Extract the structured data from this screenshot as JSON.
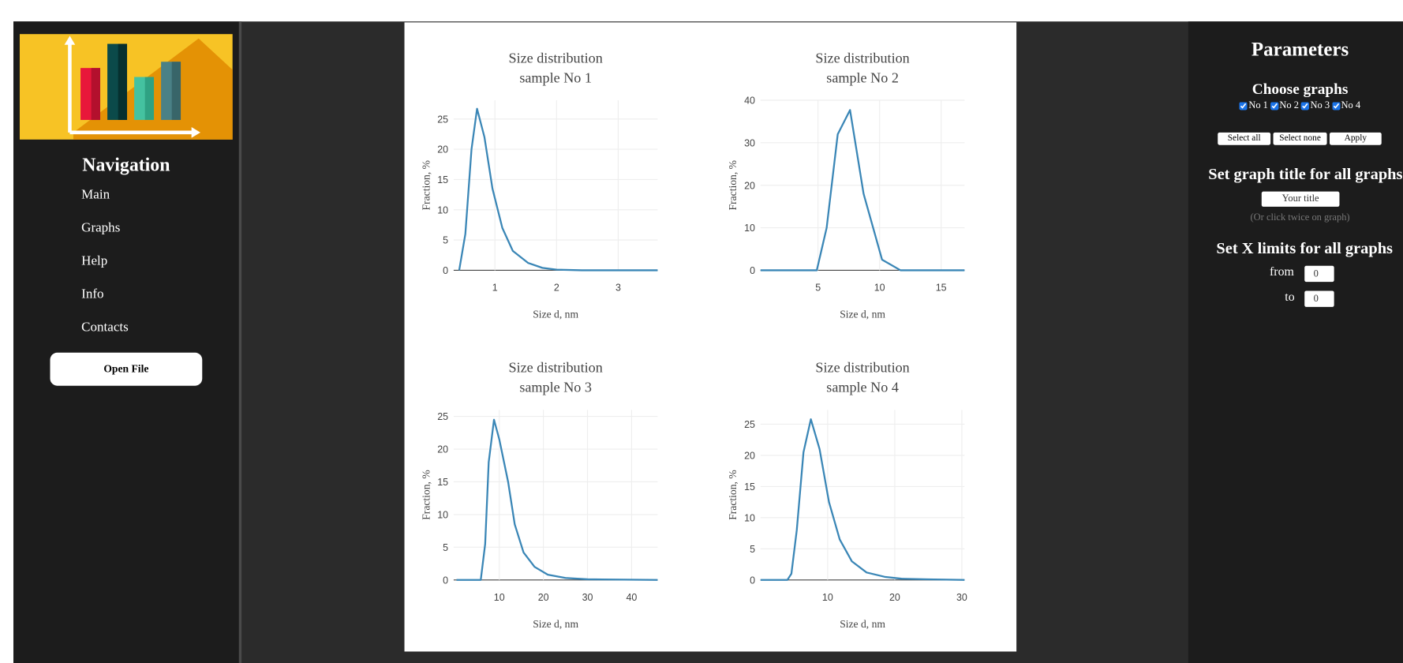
{
  "nav": {
    "title": "Navigation",
    "items": [
      "Main",
      "Graphs",
      "Help",
      "Info",
      "Contacts"
    ],
    "button": "Open File"
  },
  "params": {
    "title": "Parameters",
    "choose": "Choose graphs",
    "checkboxes": [
      "No 1",
      "No 2",
      "No 3",
      "No 4"
    ],
    "buttons": [
      "Select all",
      "Select none",
      "Apply"
    ],
    "title_heading": "Set graph title for all graphs",
    "title_input": "Your title",
    "title_hint": "(Or click twice on graph)",
    "xlim_heading": "Set X limits for all graphs",
    "from_label": "from",
    "from_value": "0",
    "to_label": "to",
    "to_value": "0"
  },
  "chart_data": [
    {
      "type": "line",
      "title": "Size distribution",
      "subtitle": "sample No 1",
      "x_label": "Size d, nm",
      "y_label": "Fraction, %",
      "x": [
        0.42,
        0.52,
        0.62,
        0.71,
        0.83,
        0.96,
        1.12,
        1.29,
        1.54,
        1.77,
        2.0,
        2.41,
        3.64
      ],
      "series": [
        {
          "color": "#3a86b6",
          "values": [
            0,
            6,
            20,
            26.7,
            22,
            13.5,
            7,
            3.2,
            1.2,
            0.4,
            0.1,
            0,
            0
          ]
        }
      ],
      "xlim": [
        0.33,
        3.64
      ],
      "ylim": [
        0,
        28.1
      ],
      "xticks": [
        1,
        2,
        3
      ],
      "yticks": [
        0,
        5,
        10,
        15,
        20,
        25
      ],
      "grid": true
    },
    {
      "type": "line",
      "title": "Size distribution",
      "subtitle": "sample No 2",
      "x_label": "Size d, nm",
      "y_label": "Fraction, %",
      "x": [
        0.33,
        4.9,
        5.7,
        6.6,
        7.6,
        8.7,
        10.2,
        11.7,
        16.9
      ],
      "series": [
        {
          "color": "#3a86b6",
          "values": [
            0,
            0,
            10,
            32,
            37.7,
            18,
            2.5,
            0,
            0
          ]
        }
      ],
      "xlim": [
        0.33,
        16.9
      ],
      "ylim": [
        0,
        40
      ],
      "xticks": [
        5,
        10,
        15
      ],
      "yticks": [
        0,
        10,
        20,
        30,
        40
      ],
      "grid": true
    },
    {
      "type": "line",
      "title": "Size distribution",
      "subtitle": "sample No 3",
      "x_label": "Size d, nm",
      "y_label": "Fraction, %",
      "x": [
        0.3,
        5.8,
        6.8,
        7.6,
        8.8,
        10,
        12,
        13.5,
        15.5,
        18,
        21,
        25,
        30,
        45.9
      ],
      "series": [
        {
          "color": "#3a86b6",
          "values": [
            0,
            0,
            5.5,
            18,
            24.5,
            21.5,
            15,
            8.5,
            4.2,
            2,
            0.8,
            0.3,
            0.1,
            0
          ]
        }
      ],
      "xlim": [
        -0.35,
        45.9
      ],
      "ylim": [
        0,
        26
      ],
      "xticks": [
        10,
        20,
        30,
        40
      ],
      "yticks": [
        0,
        5,
        10,
        15,
        20,
        25
      ],
      "grid": true
    },
    {
      "type": "line",
      "title": "Size distribution",
      "subtitle": "sample No 4",
      "x_label": "Size d, nm",
      "y_label": "Fraction, %",
      "x": [
        0,
        4,
        4.6,
        5.4,
        6.4,
        7.5,
        8.8,
        10.2,
        11.8,
        13.6,
        15.8,
        18.5,
        21,
        25,
        30.4
      ],
      "series": [
        {
          "color": "#3a86b6",
          "values": [
            0,
            0,
            1,
            8,
            20.5,
            25.8,
            21,
            12.5,
            6.5,
            3,
            1.2,
            0.5,
            0.2,
            0.1,
            0
          ]
        }
      ],
      "xlim": [
        0,
        30.4
      ],
      "ylim": [
        0,
        27.3
      ],
      "xticks": [
        10,
        20,
        30
      ],
      "yticks": [
        0,
        5,
        10,
        15,
        20,
        25
      ],
      "grid": true
    }
  ]
}
